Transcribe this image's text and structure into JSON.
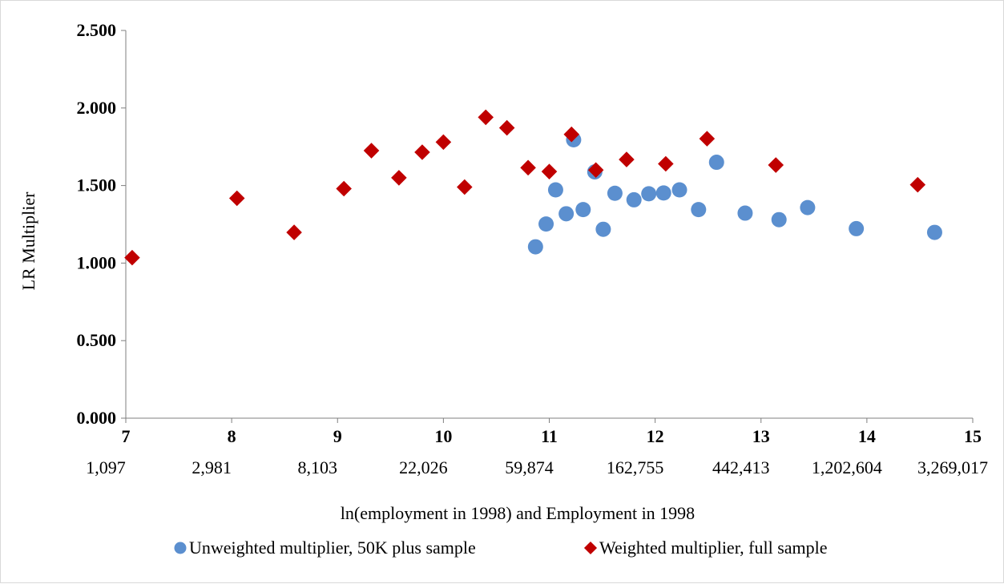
{
  "chart_data": {
    "type": "scatter",
    "title": "",
    "xlabel": "ln(employment in 1998) and Employment in 1998",
    "ylabel": "LR Multiplier",
    "xlim": [
      7,
      15
    ],
    "ylim": [
      0,
      2.5
    ],
    "grid": false,
    "legend_position": "bottom",
    "y_ticks": [
      {
        "value": 0,
        "label": "0.000"
      },
      {
        "value": 0.5,
        "label": "0.500"
      },
      {
        "value": 1,
        "label": "1.000"
      },
      {
        "value": 1.5,
        "label": "1.500"
      },
      {
        "value": 2,
        "label": "2.000"
      },
      {
        "value": 2.5,
        "label": "2.500"
      }
    ],
    "x_ticks": [
      {
        "value": 7,
        "label": "7"
      },
      {
        "value": 8,
        "label": "8"
      },
      {
        "value": 9,
        "label": "9"
      },
      {
        "value": 10,
        "label": "10"
      },
      {
        "value": 11,
        "label": "11"
      },
      {
        "value": 12,
        "label": "12"
      },
      {
        "value": 13,
        "label": "13"
      },
      {
        "value": 14,
        "label": "14"
      },
      {
        "value": 15,
        "label": "15"
      }
    ],
    "x_secondary_labels": [
      {
        "value": 7,
        "label": "1,097"
      },
      {
        "value": 8,
        "label": "2,981"
      },
      {
        "value": 9,
        "label": "8,103"
      },
      {
        "value": 10,
        "label": "22,026"
      },
      {
        "value": 11,
        "label": "59,874"
      },
      {
        "value": 12,
        "label": "162,755"
      },
      {
        "value": 13,
        "label": "442,413"
      },
      {
        "value": 14,
        "label": "1,202,604"
      },
      {
        "value": 15,
        "label": "3,269,017"
      }
    ],
    "series": [
      {
        "name": "Unweighted multiplier, 50K plus sample",
        "marker": "circle",
        "color": "#5b8fcf",
        "points": [
          {
            "x": 10.87,
            "y": 1.105
          },
          {
            "x": 10.97,
            "y": 1.252
          },
          {
            "x": 11.06,
            "y": 1.472
          },
          {
            "x": 11.16,
            "y": 1.318
          },
          {
            "x": 11.23,
            "y": 1.795
          },
          {
            "x": 11.32,
            "y": 1.345
          },
          {
            "x": 11.43,
            "y": 1.588
          },
          {
            "x": 11.51,
            "y": 1.218
          },
          {
            "x": 11.62,
            "y": 1.45
          },
          {
            "x": 11.8,
            "y": 1.408
          },
          {
            "x": 11.94,
            "y": 1.447
          },
          {
            "x": 12.08,
            "y": 1.452
          },
          {
            "x": 12.23,
            "y": 1.472
          },
          {
            "x": 12.41,
            "y": 1.345
          },
          {
            "x": 12.58,
            "y": 1.65
          },
          {
            "x": 12.85,
            "y": 1.322
          },
          {
            "x": 13.17,
            "y": 1.28
          },
          {
            "x": 13.44,
            "y": 1.358
          },
          {
            "x": 13.9,
            "y": 1.222
          },
          {
            "x": 14.64,
            "y": 1.198
          }
        ]
      },
      {
        "name": "Weighted multiplier, full sample",
        "marker": "diamond",
        "color": "#c00000",
        "points": [
          {
            "x": 7.06,
            "y": 1.035
          },
          {
            "x": 8.05,
            "y": 1.418
          },
          {
            "x": 8.59,
            "y": 1.198
          },
          {
            "x": 9.06,
            "y": 1.48
          },
          {
            "x": 9.32,
            "y": 1.725
          },
          {
            "x": 9.58,
            "y": 1.55
          },
          {
            "x": 9.8,
            "y": 1.715
          },
          {
            "x": 10.0,
            "y": 1.78
          },
          {
            "x": 10.2,
            "y": 1.49
          },
          {
            "x": 10.4,
            "y": 1.94
          },
          {
            "x": 10.6,
            "y": 1.872
          },
          {
            "x": 10.8,
            "y": 1.615
          },
          {
            "x": 11.0,
            "y": 1.59
          },
          {
            "x": 11.21,
            "y": 1.83
          },
          {
            "x": 11.44,
            "y": 1.6
          },
          {
            "x": 11.73,
            "y": 1.668
          },
          {
            "x": 12.1,
            "y": 1.64
          },
          {
            "x": 12.49,
            "y": 1.802
          },
          {
            "x": 13.14,
            "y": 1.632
          },
          {
            "x": 14.48,
            "y": 1.505
          }
        ]
      }
    ]
  }
}
